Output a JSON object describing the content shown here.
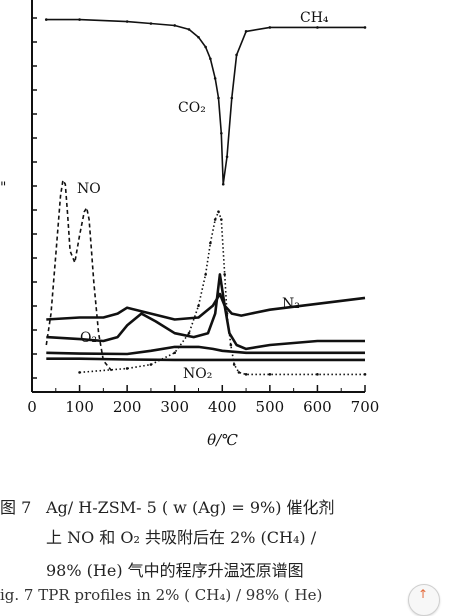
{
  "chart_data": {
    "type": "line",
    "xlabel": "θ/℃",
    "xlim": [
      0,
      700
    ],
    "xticks": [
      "0",
      "100",
      "200",
      "300",
      "400",
      "500",
      "600",
      "700"
    ],
    "ylabel": "",
    "grid": false,
    "series": [
      {
        "name": "CH4",
        "style": "solid-dotted",
        "x": [
          30,
          100,
          200,
          250,
          300,
          330,
          350,
          365,
          375,
          385,
          392,
          398,
          402,
          410,
          420,
          430,
          450,
          500,
          600,
          700
        ],
        "y": [
          0.95,
          0.95,
          0.945,
          0.94,
          0.935,
          0.925,
          0.905,
          0.88,
          0.85,
          0.8,
          0.75,
          0.66,
          0.53,
          0.6,
          0.75,
          0.86,
          0.92,
          0.93,
          0.93,
          0.93
        ]
      },
      {
        "name": "CO2",
        "style": "dotted",
        "x": [
          100,
          200,
          250,
          300,
          330,
          350,
          365,
          375,
          385,
          392,
          398,
          405,
          410,
          418,
          425,
          435,
          450,
          500,
          600,
          700
        ],
        "y": [
          0.05,
          0.06,
          0.07,
          0.1,
          0.15,
          0.22,
          0.3,
          0.38,
          0.44,
          0.46,
          0.44,
          0.3,
          0.2,
          0.12,
          0.07,
          0.05,
          0.045,
          0.045,
          0.045,
          0.045
        ]
      },
      {
        "name": "NO",
        "style": "dashed",
        "x": [
          30,
          40,
          50,
          60,
          65,
          70,
          75,
          80,
          90,
          100,
          110,
          115,
          120,
          125,
          130,
          140,
          150,
          170
        ],
        "y": [
          0.12,
          0.2,
          0.35,
          0.5,
          0.54,
          0.53,
          0.45,
          0.36,
          0.33,
          0.4,
          0.46,
          0.47,
          0.44,
          0.36,
          0.28,
          0.15,
          0.08,
          0.05
        ]
      },
      {
        "name": "N2",
        "style": "solid",
        "x": [
          30,
          100,
          150,
          180,
          200,
          250,
          300,
          350,
          380,
          395,
          405,
          420,
          440,
          460,
          500,
          600,
          700
        ],
        "y": [
          0.185,
          0.19,
          0.19,
          0.2,
          0.215,
          0.2,
          0.185,
          0.19,
          0.22,
          0.25,
          0.22,
          0.2,
          0.195,
          0.2,
          0.21,
          0.225,
          0.24
        ]
      },
      {
        "name": "O2",
        "style": "solid",
        "x": [
          30,
          100,
          150,
          180,
          200,
          230,
          260,
          300,
          340,
          370,
          385,
          395,
          405,
          415,
          430,
          450,
          500,
          600,
          700
        ],
        "y": [
          0.14,
          0.135,
          0.13,
          0.14,
          0.17,
          0.2,
          0.18,
          0.15,
          0.14,
          0.15,
          0.2,
          0.3,
          0.22,
          0.15,
          0.12,
          0.11,
          0.12,
          0.13,
          0.13
        ]
      },
      {
        "name": "NO2",
        "style": "solid",
        "x": [
          30,
          100,
          200,
          300,
          400,
          500,
          600,
          700
        ],
        "y": [
          0.085,
          0.085,
          0.083,
          0.082,
          0.082,
          0.082,
          0.082,
          0.082
        ]
      },
      {
        "name": "",
        "style": "solid",
        "x": [
          30,
          100,
          200,
          250,
          300,
          350,
          380,
          400,
          450,
          500,
          600,
          700
        ],
        "y": [
          0.1,
          0.098,
          0.097,
          0.105,
          0.115,
          0.115,
          0.11,
          0.105,
          0.1,
          0.1,
          0.1,
          0.1
        ]
      }
    ],
    "labels": [
      {
        "text": "CH₄",
        "series": "CH4"
      },
      {
        "text": "CO₂",
        "series": "CO2"
      },
      {
        "text": "NO",
        "series": "NO"
      },
      {
        "text": "N₂",
        "series": "N2"
      },
      {
        "text": "O₂",
        "series": "O2"
      },
      {
        "text": "NO₂",
        "series": "NO2"
      }
    ]
  },
  "caption": {
    "fig": "图 7",
    "line1": "Ag/ H-ZSM- 5 ( w (Ag) = 9%) 催化剂",
    "line2": "上 NO 和 O₂ 共吸附后在 2% (CH₄) /",
    "line3": "98% (He) 气中的程序升温还原谱图",
    "line4": "ig. 7   TPR profiles in 2% ( CH₄) / 98% ( He)"
  },
  "left_label": "\""
}
